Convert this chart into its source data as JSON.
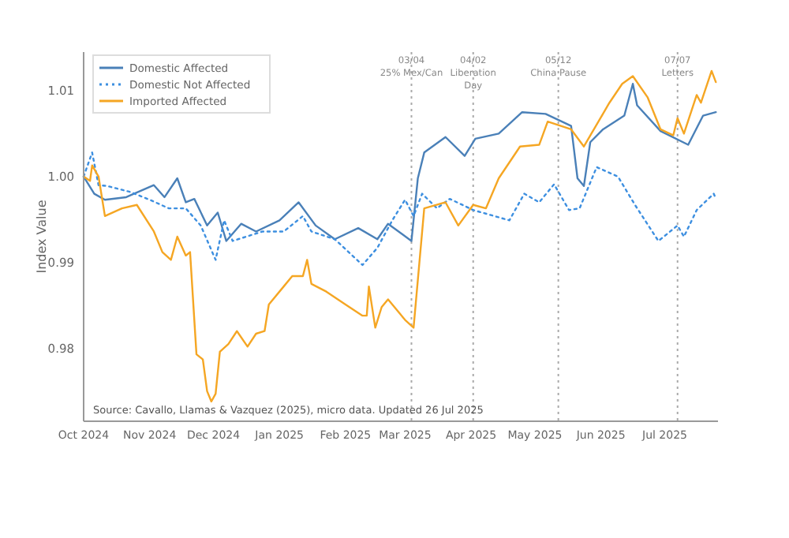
{
  "chart_data": {
    "type": "line",
    "ylabel": "Index Value",
    "xlim": [
      "2024-10-01",
      "2025-07-26"
    ],
    "xticks": [
      {
        "value": "2024-10-01",
        "label": "Oct 2024"
      },
      {
        "value": "2024-11-01",
        "label": "Nov 2024"
      },
      {
        "value": "2024-12-01",
        "label": "Dec 2024"
      },
      {
        "value": "2025-01-01",
        "label": "Jan 2025"
      },
      {
        "value": "2025-02-01",
        "label": "Feb 2025"
      },
      {
        "value": "2025-03-01",
        "label": "Mar 2025"
      },
      {
        "value": "2025-04-01",
        "label": "Apr 2025"
      },
      {
        "value": "2025-05-01",
        "label": "May 2025"
      },
      {
        "value": "2025-06-01",
        "label": "Jun 2025"
      },
      {
        "value": "2025-07-01",
        "label": "Jul 2025"
      }
    ],
    "ylim": [
      0.9715,
      1.0145
    ],
    "yticks": [
      {
        "value": 0.98,
        "label": "0.98"
      },
      {
        "value": 0.99,
        "label": "0.99"
      },
      {
        "value": 1,
        "label": "1.00"
      },
      {
        "value": 1.01,
        "label": "1.01"
      }
    ],
    "grid": false,
    "legend": "top left",
    "series": [
      {
        "name": "Domestic Affected",
        "color": "#4a80b8",
        "line_style": "solid",
        "x": [
          "2024-10-01",
          "2024-10-06",
          "2024-10-11",
          "2024-10-21",
          "2024-11-03",
          "2024-11-08",
          "2024-11-14",
          "2024-11-18",
          "2024-11-22",
          "2024-11-28",
          "2024-12-03",
          "2024-12-07",
          "2024-12-14",
          "2024-12-21",
          "2025-01-01",
          "2025-01-10",
          "2025-01-18",
          "2025-01-27",
          "2025-02-07",
          "2025-02-16",
          "2025-02-21",
          "2025-03-04",
          "2025-03-07",
          "2025-03-10",
          "2025-03-20",
          "2025-03-29",
          "2025-04-03",
          "2025-04-14",
          "2025-04-25",
          "2025-05-06",
          "2025-05-18",
          "2025-05-21",
          "2025-05-24",
          "2025-05-27",
          "2025-06-02",
          "2025-06-12",
          "2025-06-16",
          "2025-06-18",
          "2025-06-29",
          "2025-07-12",
          "2025-07-19",
          "2025-07-25"
        ],
        "values": [
          1.0,
          0.998,
          0.9973,
          0.9976,
          0.999,
          0.9976,
          0.9998,
          0.997,
          0.9974,
          0.9943,
          0.9958,
          0.9925,
          0.9945,
          0.9936,
          0.9949,
          0.997,
          0.9943,
          0.9927,
          0.994,
          0.9927,
          0.9945,
          0.9925,
          0.9998,
          1.0028,
          1.0046,
          1.0024,
          1.0044,
          1.005,
          1.0075,
          1.0073,
          1.0059,
          0.9998,
          0.9989,
          1.004,
          1.0055,
          1.0071,
          1.0108,
          1.0083,
          1.0053,
          1.0037,
          1.0071,
          1.0075
        ]
      },
      {
        "name": "Domestic Not Affected",
        "color": "#3d8fe0",
        "line_style": "dotted",
        "x": [
          "2024-10-01",
          "2024-10-05",
          "2024-10-08",
          "2024-10-12",
          "2024-10-23",
          "2024-11-01",
          "2024-11-10",
          "2024-11-18",
          "2024-11-25",
          "2024-12-02",
          "2024-12-06",
          "2024-12-10",
          "2024-12-24",
          "2025-01-03",
          "2025-01-12",
          "2025-01-16",
          "2025-01-27",
          "2025-02-09",
          "2025-02-16",
          "2025-02-23",
          "2025-03-01",
          "2025-03-05",
          "2025-03-09",
          "2025-03-16",
          "2025-03-22",
          "2025-04-02",
          "2025-04-19",
          "2025-04-26",
          "2025-05-03",
          "2025-05-10",
          "2025-05-17",
          "2025-05-22",
          "2025-05-30",
          "2025-06-09",
          "2025-06-17",
          "2025-06-28",
          "2025-07-07",
          "2025-07-10",
          "2025-07-16",
          "2025-07-24",
          "2025-07-25"
        ],
        "values": [
          1.0,
          1.0028,
          0.999,
          0.9989,
          0.9982,
          0.9973,
          0.9963,
          0.9963,
          0.9943,
          0.9903,
          0.9949,
          0.9925,
          0.9936,
          0.9936,
          0.9954,
          0.9936,
          0.9927,
          0.9897,
          0.9917,
          0.9949,
          0.9973,
          0.9954,
          0.998,
          0.9963,
          0.9974,
          0.9961,
          0.9949,
          0.998,
          0.997,
          0.9991,
          0.9961,
          0.9963,
          1.0011,
          1.0,
          0.9967,
          0.9925,
          0.9943,
          0.993,
          0.9961,
          0.998,
          0.9974
        ]
      },
      {
        "name": "Imported Affected",
        "color": "#f5a623",
        "line_style": "solid",
        "x": [
          "2024-10-01",
          "2024-10-04",
          "2024-10-05",
          "2024-10-08",
          "2024-10-11",
          "2024-10-19",
          "2024-10-26",
          "2024-11-03",
          "2024-11-07",
          "2024-11-11",
          "2024-11-14",
          "2024-11-18",
          "2024-11-20",
          "2024-11-23",
          "2024-11-26",
          "2024-11-28",
          "2024-11-30",
          "2024-12-02",
          "2024-12-04",
          "2024-12-08",
          "2024-12-12",
          "2024-12-17",
          "2024-12-21",
          "2024-12-25",
          "2024-12-27",
          "2025-01-03",
          "2025-01-07",
          "2025-01-12",
          "2025-01-14",
          "2025-01-16",
          "2025-01-23",
          "2025-02-01",
          "2025-02-09",
          "2025-02-11",
          "2025-02-12",
          "2025-02-15",
          "2025-02-18",
          "2025-02-21",
          "2025-03-01",
          "2025-03-05",
          "2025-03-10",
          "2025-03-20",
          "2025-03-26",
          "2025-04-02",
          "2025-04-08",
          "2025-04-14",
          "2025-04-24",
          "2025-05-03",
          "2025-05-07",
          "2025-05-18",
          "2025-05-24",
          "2025-06-05",
          "2025-06-11",
          "2025-06-16",
          "2025-06-23",
          "2025-06-29",
          "2025-07-05",
          "2025-07-07",
          "2025-07-10",
          "2025-07-16",
          "2025-07-18",
          "2025-07-23",
          "2025-07-25"
        ],
        "values": [
          1.0,
          0.9995,
          1.0013,
          1.0,
          0.9954,
          0.9963,
          0.9967,
          0.9936,
          0.9912,
          0.9903,
          0.993,
          0.9908,
          0.9912,
          0.9793,
          0.9787,
          0.975,
          0.9738,
          0.9747,
          0.9796,
          0.9805,
          0.982,
          0.9802,
          0.9817,
          0.982,
          0.9851,
          0.9872,
          0.9884,
          0.9884,
          0.9903,
          0.9875,
          0.9866,
          0.9851,
          0.9838,
          0.9838,
          0.9872,
          0.9824,
          0.9848,
          0.9857,
          0.9833,
          0.9824,
          0.9963,
          0.997,
          0.9943,
          0.9967,
          0.9963,
          0.9998,
          1.0035,
          1.0037,
          1.0064,
          1.0055,
          1.0035,
          1.0086,
          1.0108,
          1.0117,
          1.0092,
          1.0055,
          1.0048,
          1.0068,
          1.005,
          1.0095,
          1.0086,
          1.0123,
          1.011
        ]
      }
    ],
    "ref_lines": [
      {
        "axis": "x",
        "value": "2025-03-04",
        "label": "03/04\n25% Mex/Can",
        "color": "#aaaaaa",
        "line_style": "dotted"
      },
      {
        "axis": "x",
        "value": "2025-04-02",
        "label": "04/02\nLiberation\nDay",
        "color": "#aaaaaa",
        "line_style": "dotted"
      },
      {
        "axis": "x",
        "value": "2025-05-12",
        "label": "05/12\nChina Pause",
        "color": "#aaaaaa",
        "line_style": "dotted"
      },
      {
        "axis": "x",
        "value": "2025-07-07",
        "label": "07/07\nLetters",
        "color": "#aaaaaa",
        "line_style": "dotted"
      }
    ],
    "annotations": [
      "Source: Cavallo, Llamas & Vazquez (2025), micro data. Updated 26 Jul 2025"
    ]
  }
}
